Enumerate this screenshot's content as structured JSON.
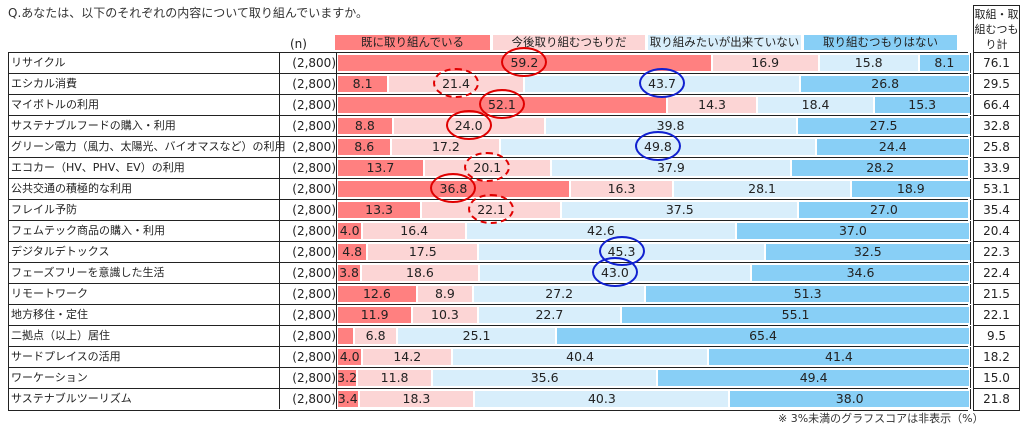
{
  "title": "Q.あなたは、以下のそれぞれの内容について取り組んでいますか。",
  "n_header": "(n)",
  "total_header": "取組・取組むつもり計",
  "footnote": "※ 3%未満のグラフスコアは非表示（%）",
  "colors": [
    "#ff8080",
    "#fcd5d5",
    "#d8eefb",
    "#88cff6"
  ],
  "chart_data": {
    "type": "bar",
    "stacked": true,
    "orientation": "horizontal",
    "xlim": [
      0,
      100
    ],
    "unit": "%",
    "legend": [
      "既に取り組んでいる",
      "今後取り組むつもりだ",
      "取り組みたいが出来ていない",
      "取り組むつもりはない"
    ],
    "legend_placement": "top",
    "hide_below": 3,
    "rows": [
      {
        "label": "リサイクル",
        "n": "(2,800)",
        "values": [
          59.2,
          16.9,
          15.8,
          8.1
        ],
        "total": "76.1",
        "highlights": [
          [
            "0",
            "red-solid"
          ]
        ]
      },
      {
        "label": "エシカル消費",
        "n": "(2,800)",
        "values": [
          8.1,
          21.4,
          43.7,
          26.8
        ],
        "total": "29.5",
        "highlights": [
          [
            "1",
            "red-dashed"
          ],
          [
            "2",
            "blue-solid"
          ]
        ]
      },
      {
        "label": "マイボトルの利用",
        "n": "(2,800)",
        "values": [
          52.1,
          14.3,
          18.4,
          15.3
        ],
        "total": "66.4",
        "highlights": [
          [
            "0",
            "red-solid"
          ]
        ]
      },
      {
        "label": "サステナブルフードの購入・利用",
        "n": "(2,800)",
        "values": [
          8.8,
          24.0,
          39.8,
          27.5
        ],
        "total": "32.8",
        "highlights": [
          [
            "1",
            "red-solid"
          ]
        ]
      },
      {
        "label": "グリーン電力（風力、太陽光、バイオマスなど）の利用",
        "n": "(2,800)",
        "values": [
          8.6,
          17.2,
          49.8,
          24.4
        ],
        "total": "25.8",
        "highlights": [
          [
            "2",
            "blue-solid"
          ]
        ]
      },
      {
        "label": "エコカー（HV、PHV、EV）の利用",
        "n": "(2,800)",
        "values": [
          13.7,
          20.1,
          37.9,
          28.2
        ],
        "total": "33.9",
        "highlights": [
          [
            "1",
            "red-dashed"
          ]
        ]
      },
      {
        "label": "公共交通の積極的な利用",
        "n": "(2,800)",
        "values": [
          36.8,
          16.3,
          28.1,
          18.9
        ],
        "total": "53.1",
        "highlights": [
          [
            "0",
            "red-solid"
          ]
        ]
      },
      {
        "label": "フレイル予防",
        "n": "(2,800)",
        "values": [
          13.3,
          22.1,
          37.5,
          27.0
        ],
        "total": "35.4",
        "highlights": [
          [
            "1",
            "red-dashed"
          ]
        ]
      },
      {
        "label": "フェムテック商品の購入・利用",
        "n": "(2,800)",
        "values": [
          4.0,
          16.4,
          42.6,
          37.0
        ],
        "total": "20.4",
        "highlights": []
      },
      {
        "label": "デジタルデトックス",
        "n": "(2,800)",
        "values": [
          4.8,
          17.5,
          45.3,
          32.5
        ],
        "total": "22.3",
        "highlights": [
          [
            "2",
            "blue-solid"
          ]
        ]
      },
      {
        "label": "フェーズフリーを意識した生活",
        "n": "(2,800)",
        "values": [
          3.8,
          18.6,
          43.0,
          34.6
        ],
        "total": "22.4",
        "highlights": [
          [
            "2",
            "blue-solid"
          ]
        ]
      },
      {
        "label": "リモートワーク",
        "n": "(2,800)",
        "values": [
          12.6,
          8.9,
          27.2,
          51.3
        ],
        "total": "21.5",
        "highlights": []
      },
      {
        "label": "地方移住・定住",
        "n": "(2,800)",
        "values": [
          11.9,
          10.3,
          22.7,
          55.1
        ],
        "total": "22.1",
        "highlights": []
      },
      {
        "label": "二拠点（以上）居住",
        "n": "(2,800)",
        "values": [
          2.7,
          6.8,
          25.1,
          65.4
        ],
        "total": "9.5",
        "highlights": []
      },
      {
        "label": "サードプレイスの活用",
        "n": "(2,800)",
        "values": [
          4.0,
          14.2,
          40.4,
          41.4
        ],
        "total": "18.2",
        "highlights": []
      },
      {
        "label": "ワーケーション",
        "n": "(2,800)",
        "values": [
          3.2,
          11.8,
          35.6,
          49.4
        ],
        "total": "15.0",
        "highlights": []
      },
      {
        "label": "サステナブルツーリズム",
        "n": "(2,800)",
        "values": [
          3.4,
          18.3,
          40.3,
          38.0
        ],
        "total": "21.8",
        "highlights": []
      }
    ]
  }
}
